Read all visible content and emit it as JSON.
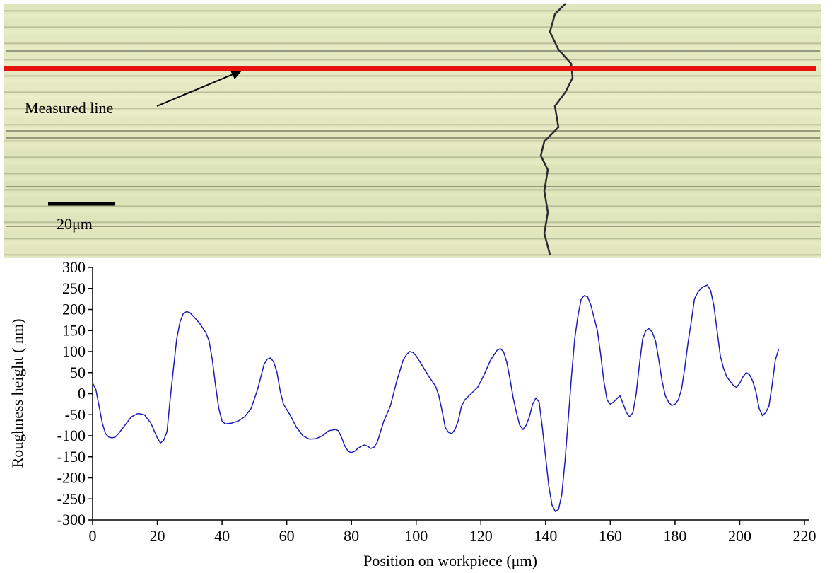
{
  "image": {
    "annotation": "Measured line",
    "scale_bar": "20μm"
  },
  "chart_data": {
    "type": "line",
    "xlabel": "Position on workpiece (μm)",
    "ylabel": "Roughness height ( nm)",
    "xlim": [
      0,
      220
    ],
    "ylim": [
      -300,
      300
    ],
    "xticks": [
      0,
      20,
      40,
      60,
      80,
      100,
      120,
      140,
      160,
      180,
      200,
      220
    ],
    "yticks": [
      -300,
      -250,
      -200,
      -150,
      -100,
      -50,
      0,
      50,
      100,
      150,
      200,
      250,
      300
    ],
    "series": [
      {
        "color": "#1c1cb8",
        "x": [
          0,
          1,
          2,
          3,
          4,
          5,
          6,
          7,
          8,
          10,
          12,
          14,
          16,
          18,
          20,
          21,
          22,
          23,
          24,
          25,
          26,
          27,
          28,
          29,
          30,
          31,
          33,
          35,
          36,
          37,
          38,
          39,
          40,
          41,
          43,
          45,
          47,
          49,
          51,
          53,
          54,
          55,
          56,
          57,
          58,
          59,
          61,
          63,
          65,
          67,
          69,
          71,
          73,
          75,
          76,
          77,
          78,
          79,
          80,
          81,
          82,
          83,
          84,
          85,
          86,
          87,
          88,
          89,
          90,
          92,
          93,
          94,
          96,
          97,
          98,
          99,
          100,
          102,
          104,
          106,
          107,
          108,
          109,
          110,
          111,
          112,
          113,
          114,
          115,
          117,
          119,
          121,
          123,
          125,
          126,
          127,
          128,
          129,
          130,
          131,
          132,
          133,
          134,
          135,
          136,
          137,
          138,
          139,
          140,
          141,
          142,
          143,
          144,
          145,
          146,
          147,
          148,
          149,
          150,
          151,
          152,
          153,
          154,
          156,
          157,
          158,
          159,
          160,
          161,
          162,
          163,
          164,
          165,
          166,
          167,
          168,
          169,
          170,
          171,
          172,
          173,
          174,
          175,
          176,
          177,
          178,
          179,
          180,
          181,
          182,
          183,
          184,
          185,
          186,
          187,
          188,
          189,
          190,
          191,
          192,
          193,
          194,
          195,
          196,
          198,
          199,
          200,
          201,
          202,
          203,
          204,
          205,
          206,
          207,
          208,
          209,
          210,
          211,
          212
        ],
        "values": [
          25,
          10,
          -30,
          -70,
          -95,
          -103,
          -105,
          -103,
          -95,
          -75,
          -55,
          -47,
          -50,
          -70,
          -105,
          -117,
          -110,
          -90,
          -10,
          60,
          130,
          170,
          190,
          195,
          193,
          185,
          168,
          145,
          125,
          80,
          20,
          -35,
          -65,
          -72,
          -70,
          -65,
          -55,
          -35,
          10,
          70,
          82,
          85,
          75,
          50,
          5,
          -25,
          -50,
          -80,
          -100,
          -108,
          -107,
          -100,
          -88,
          -85,
          -88,
          -105,
          -125,
          -137,
          -140,
          -137,
          -130,
          -125,
          -122,
          -125,
          -130,
          -127,
          -115,
          -90,
          -65,
          -30,
          0,
          30,
          80,
          93,
          100,
          98,
          90,
          65,
          40,
          18,
          -5,
          -40,
          -80,
          -92,
          -95,
          -85,
          -65,
          -30,
          -15,
          0,
          15,
          45,
          80,
          103,
          107,
          100,
          75,
          35,
          -10,
          -45,
          -75,
          -85,
          -75,
          -55,
          -25,
          -10,
          -20,
          -80,
          -150,
          -220,
          -265,
          -280,
          -275,
          -240,
          -160,
          -60,
          40,
          130,
          185,
          225,
          233,
          230,
          210,
          150,
          95,
          30,
          -15,
          -25,
          -20,
          -12,
          -5,
          -25,
          -45,
          -55,
          -45,
          0,
          70,
          130,
          150,
          155,
          145,
          125,
          80,
          30,
          -5,
          -20,
          -28,
          -25,
          -15,
          10,
          60,
          120,
          170,
          225,
          240,
          250,
          255,
          258,
          245,
          210,
          150,
          90,
          60,
          40,
          20,
          15,
          25,
          40,
          50,
          45,
          30,
          5,
          -35,
          -52,
          -45,
          -30,
          20,
          80,
          105
        ]
      }
    ]
  }
}
